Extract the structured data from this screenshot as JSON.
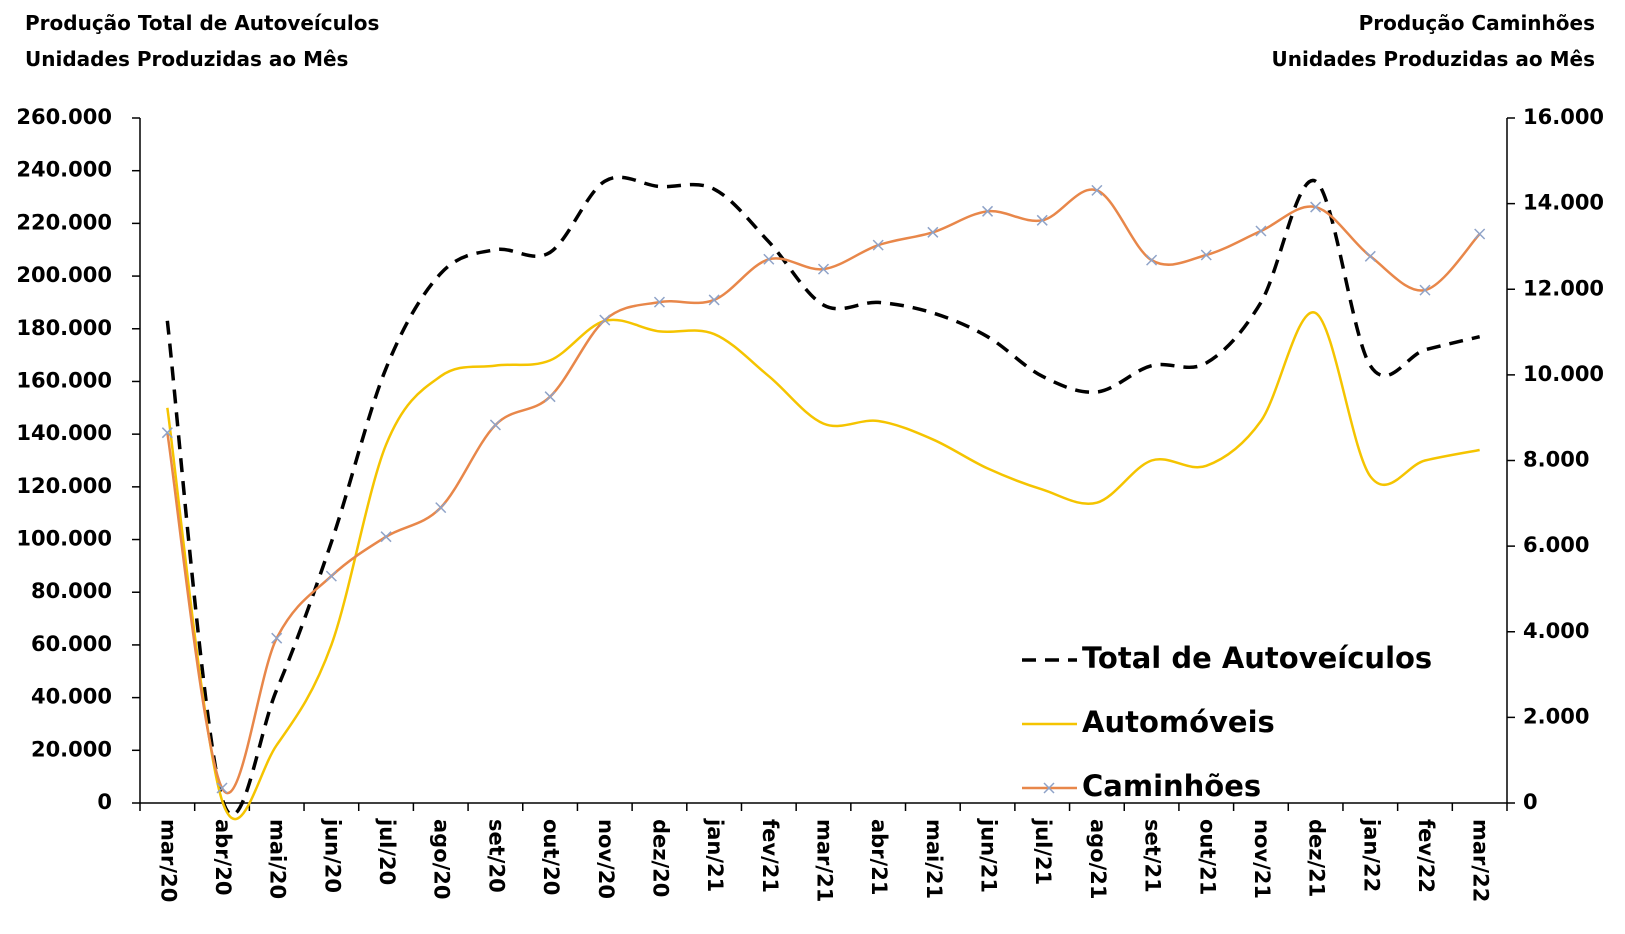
{
  "chart_data": {
    "type": "line",
    "left_title": [
      "Produção Total de Autoveículos",
      "Unidades Produzidas ao Mês"
    ],
    "right_title": [
      "Produção Caminhões",
      "Unidades Produzidas ao Mês"
    ],
    "categories": [
      "mar/20",
      "abr/20",
      "mai/20",
      "jun/20",
      "jul/20",
      "ago/20",
      "set/20",
      "out/20",
      "nov/20",
      "dez/20",
      "jan/21",
      "fev/21",
      "mar/21",
      "abr/21",
      "mai/21",
      "jun/21",
      "jul/21",
      "ago/21",
      "set/21",
      "out/21",
      "nov/21",
      "dez/21",
      "jan/22",
      "fev/22",
      "mar/22"
    ],
    "series": [
      {
        "name": "Total de Autoveículos",
        "color": "#000000",
        "dash": true,
        "values": [
          183000,
          1800,
          43000,
          99000,
          165000,
          201000,
          210000,
          209000,
          236000,
          234000,
          233000,
          213000,
          189000,
          190000,
          186000,
          177000,
          162000,
          156000,
          166000,
          167000,
          190000,
          236000,
          166000,
          172000,
          177000
        ]
      },
      {
        "name": "Automóveis",
        "color": "#f5c400",
        "values": [
          150000,
          1000,
          22000,
          60000,
          136000,
          162000,
          166000,
          168000,
          183000,
          179000,
          178000,
          162000,
          144000,
          145000,
          138000,
          127000,
          119000,
          114000,
          130000,
          128000,
          145000,
          186000,
          124000,
          130000,
          134000
        ]
      },
      {
        "name": "Caminhões",
        "color": "#e8874a",
        "axis": "y2",
        "marker": "x",
        "values": [
          8650,
          350,
          3850,
          5300,
          6220,
          6900,
          8830,
          9490,
          11280,
          11700,
          11750,
          12700,
          12470,
          13030,
          13330,
          13820,
          13610,
          14310,
          12680,
          12800,
          13360,
          13920,
          12770,
          11980,
          13290
        ]
      }
    ],
    "ylim": [
      0,
      260000
    ],
    "yticks": [
      0,
      {
        "value": 20000,
        "label": "20.000"
      },
      {
        "value": 40000,
        "label": "40.000"
      },
      {
        "value": 60000,
        "label": "60.000"
      },
      {
        "value": 80000,
        "label": "80.000"
      },
      {
        "value": 100000,
        "label": "100.000"
      },
      {
        "value": 120000,
        "label": "120.000"
      },
      {
        "value": 140000,
        "label": "140.000"
      },
      {
        "value": 160000,
        "label": "160.000"
      },
      {
        "value": 180000,
        "label": "180.000"
      },
      {
        "value": 200000,
        "label": "200.000"
      },
      {
        "value": 220000,
        "label": "220.000"
      },
      {
        "value": 240000,
        "label": "240.000"
      },
      {
        "value": 260000,
        "label": "260.000"
      }
    ],
    "y2lim": [
      0,
      16000
    ],
    "y2ticks": [
      0,
      {
        "value": 2000,
        "label": "2.000"
      },
      {
        "value": 4000,
        "label": "4.000"
      },
      {
        "value": 6000,
        "label": "6.000"
      },
      {
        "value": 8000,
        "label": "8.000"
      },
      {
        "value": 10000,
        "label": "10.000"
      },
      {
        "value": 12000,
        "label": "12.000"
      },
      {
        "value": 14000,
        "label": "14.000"
      },
      {
        "value": 16000,
        "label": "16.000"
      }
    ],
    "grid": false,
    "legend": "lower right"
  }
}
